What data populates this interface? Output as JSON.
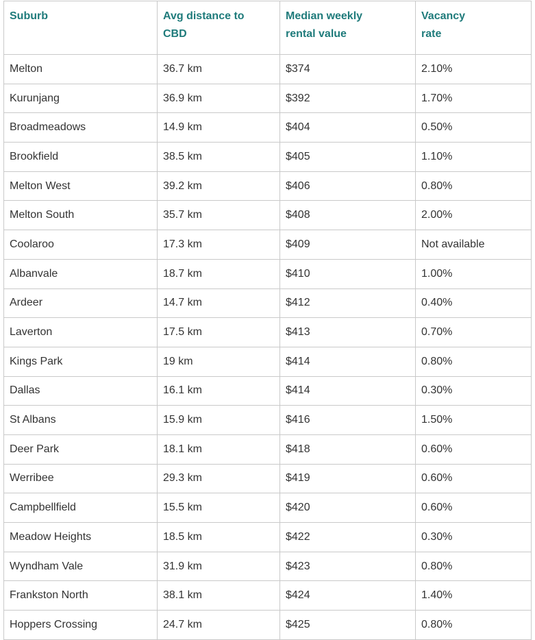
{
  "table": {
    "headers": [
      "Suburb",
      "Avg distance to CBD",
      "Median weekly rental value",
      "Vacancy rate"
    ],
    "rows": [
      [
        "Melton",
        "36.7 km",
        "$374",
        "2.10%"
      ],
      [
        "Kurunjang",
        "36.9 km",
        "$392",
        "1.70%"
      ],
      [
        "Broadmeadows",
        "14.9 km",
        "$404",
        "0.50%"
      ],
      [
        "Brookfield",
        "38.5 km",
        "$405",
        "1.10%"
      ],
      [
        "Melton West",
        "39.2 km",
        "$406",
        "0.80%"
      ],
      [
        "Melton South",
        "35.7 km",
        "$408",
        "2.00%"
      ],
      [
        "Coolaroo",
        "17.3 km",
        "$409",
        "Not available"
      ],
      [
        "Albanvale",
        "18.7 km",
        "$410",
        "1.00%"
      ],
      [
        "Ardeer",
        "14.7 km",
        "$412",
        "0.40%"
      ],
      [
        "Laverton",
        "17.5 km",
        "$413",
        "0.70%"
      ],
      [
        "Kings Park",
        "19 km",
        "$414",
        "0.80%"
      ],
      [
        "Dallas",
        "16.1 km",
        "$414",
        "0.30%"
      ],
      [
        "St Albans",
        "15.9 km",
        "$416",
        "1.50%"
      ],
      [
        "Deer Park",
        "18.1 km",
        "$418",
        "0.60%"
      ],
      [
        "Werribee",
        "29.3 km",
        "$419",
        "0.60%"
      ],
      [
        "Campbellfield",
        "15.5 km",
        "$420",
        "0.60%"
      ],
      [
        "Meadow Heights",
        "18.5 km",
        "$422",
        "0.30%"
      ],
      [
        "Wyndham Vale",
        "31.9 km",
        "$423",
        "0.80%"
      ],
      [
        "Frankston North",
        "38.1 km",
        "$424",
        "1.40%"
      ],
      [
        "Hoppers Crossing",
        "24.7 km",
        "$425",
        "0.80%"
      ]
    ]
  }
}
